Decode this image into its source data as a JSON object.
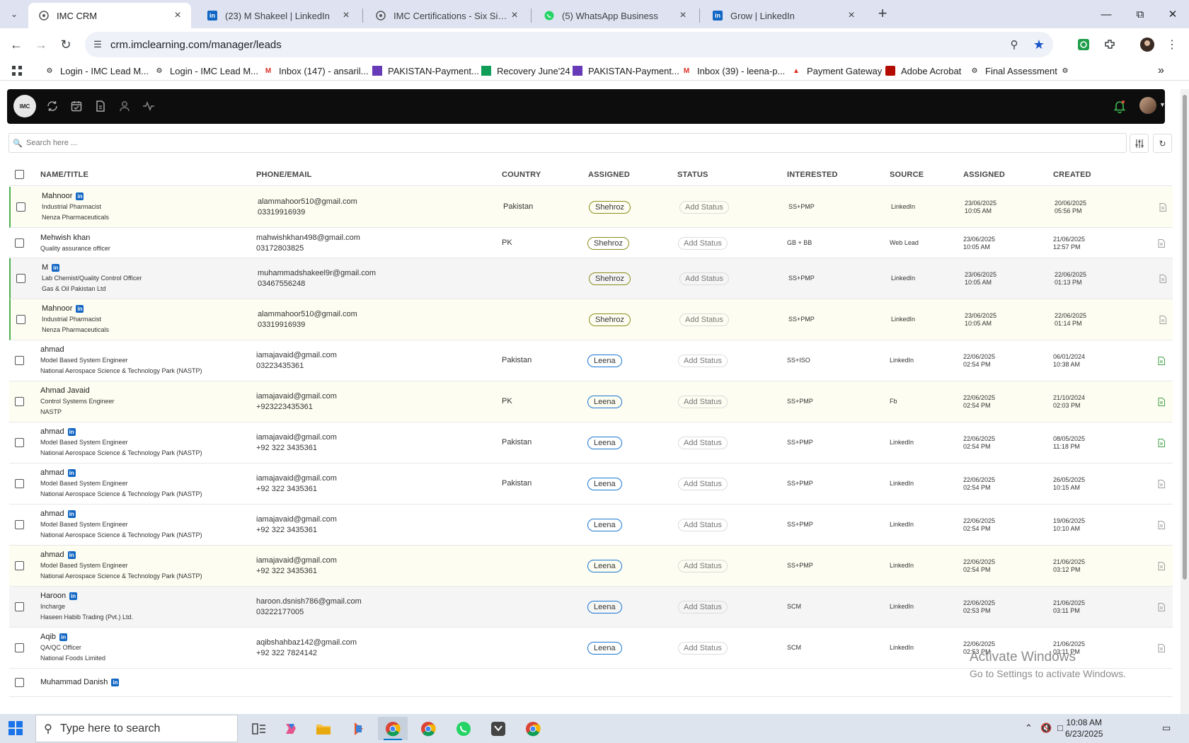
{
  "browser": {
    "tabs": [
      {
        "title": "IMC CRM",
        "active": true,
        "icon": "imc-icon"
      },
      {
        "title": "(23) M Shakeel | LinkedIn",
        "active": false,
        "icon": "linkedin-icon"
      },
      {
        "title": "IMC Certifications - Six Sigma G",
        "active": false,
        "icon": "imc-icon"
      },
      {
        "title": "(5) WhatsApp Business",
        "active": false,
        "icon": "whatsapp-icon"
      },
      {
        "title": "Grow | LinkedIn",
        "active": false,
        "icon": "linkedin-icon"
      }
    ],
    "url": "crm.imclearning.com/manager/leads",
    "bookmarks": [
      "Login - IMC Lead M...",
      "Login - IMC Lead M...",
      "Inbox (147) - ansaril...",
      "PAKISTAN-Payment...",
      "Recovery June'24",
      "PAKISTAN-Payment...",
      "Inbox (39) - leena-p...",
      "Payment Gateway",
      "Adobe Acrobat",
      "Final Assessment"
    ]
  },
  "app": {
    "logo_text": "IMC",
    "search_placeholder": "Search here ...",
    "columns": [
      "NAME/TITLE",
      "PHONE/EMAIL",
      "COUNTRY",
      "ASSIGNED",
      "STATUS",
      "INTERESTED",
      "SOURCE",
      "ASSIGNED",
      "CREATED"
    ],
    "rows": [
      {
        "name": "Mahnoor",
        "linkedin": true,
        "title": "Industrial Pharmacist",
        "company": "Nenza Pharmaceuticals",
        "email": "alammahoor510@gmail.com",
        "phone": "03319916939",
        "country": "Pakistan",
        "assigned": "Shehroz",
        "status": "Add Status",
        "interested": "SS+PMP",
        "source": "LinkedIn",
        "assigned_date": "23/06/2025",
        "assigned_time": "10:05 AM",
        "created_date": "20/06/2025",
        "created_time": "05:56 PM"
      },
      {
        "name": "Mehwish khan",
        "linkedin": false,
        "title": "Quality assurance officer",
        "company": "",
        "email": "mahwishkhan498@gmail.com",
        "phone": "03172803825",
        "country": "PK",
        "assigned": "Shehroz",
        "status": "Add Status",
        "interested": "GB + BB",
        "source": "Web Lead",
        "assigned_date": "23/06/2025",
        "assigned_time": "10:05 AM",
        "created_date": "21/06/2025",
        "created_time": "12:57 PM"
      },
      {
        "name": "M",
        "linkedin": true,
        "title": "Lab Chemist/Quality Control Officer",
        "company": "Gas & Oil Pakistan Ltd",
        "email": "muhammadshakeel9r@gmail.com",
        "phone": "03467556248",
        "country": "",
        "assigned": "Shehroz",
        "status": "Add Status",
        "interested": "SS+PMP",
        "source": "LinkedIn",
        "assigned_date": "23/06/2025",
        "assigned_time": "10:05 AM",
        "created_date": "22/06/2025",
        "created_time": "01:13 PM"
      },
      {
        "name": "Mahnoor",
        "linkedin": true,
        "title": "Industrial Pharmacist",
        "company": "Nenza Pharmaceuticals",
        "email": "alammahoor510@gmail.com",
        "phone": "03319916939",
        "country": "",
        "assigned": "Shehroz",
        "status": "Add Status",
        "interested": "SS+PMP",
        "source": "LinkedIn",
        "assigned_date": "23/06/2025",
        "assigned_time": "10:05 AM",
        "created_date": "22/06/2025",
        "created_time": "01:14 PM"
      },
      {
        "name": "ahmad",
        "linkedin": false,
        "title": "Model Based System Engineer",
        "company": "National Aerospace Science & Technology Park (NASTP)",
        "email": "iamajavaid@gmail.com",
        "phone": "03223435361",
        "country": "Pakistan",
        "assigned": "Leena",
        "status": "Add Status",
        "interested": "SS+ISO",
        "source": "LinkedIn",
        "assigned_date": "22/06/2025",
        "assigned_time": "02:54 PM",
        "created_date": "06/01/2024",
        "created_time": "10:38 AM"
      },
      {
        "name": "Ahmad Javaid",
        "linkedin": false,
        "title": "Control Systems Engineer",
        "company": "NASTP",
        "email": "iamajavaid@gmail.com",
        "phone": "+923223435361",
        "country": "PK",
        "assigned": "Leena",
        "status": "Add Status",
        "interested": "SS+PMP",
        "source": "Fb",
        "assigned_date": "22/06/2025",
        "assigned_time": "02:54 PM",
        "created_date": "21/10/2024",
        "created_time": "02:03 PM"
      },
      {
        "name": "ahmad",
        "linkedin": true,
        "title": "Model Based System Engineer",
        "company": "National Aerospace Science & Technology Park (NASTP)",
        "email": "iamajavaid@gmail.com",
        "phone": "+92 322 3435361",
        "country": "Pakistan",
        "assigned": "Leena",
        "status": "Add Status",
        "interested": "SS+PMP",
        "source": "LinkedIn",
        "assigned_date": "22/06/2025",
        "assigned_time": "02:54 PM",
        "created_date": "08/05/2025",
        "created_time": "11:18 PM"
      },
      {
        "name": "ahmad",
        "linkedin": true,
        "title": "Model Based System Engineer",
        "company": "National Aerospace Science & Technology Park (NASTP)",
        "email": "iamajavaid@gmail.com",
        "phone": "+92 322 3435361",
        "country": "Pakistan",
        "assigned": "Leena",
        "status": "Add Status",
        "interested": "SS+PMP",
        "source": "LinkedIn",
        "assigned_date": "22/06/2025",
        "assigned_time": "02:54 PM",
        "created_date": "26/05/2025",
        "created_time": "10:15 AM"
      },
      {
        "name": "ahmad",
        "linkedin": true,
        "title": "Model Based System Engineer",
        "company": "National Aerospace Science & Technology Park (NASTP)",
        "email": "iamajavaid@gmail.com",
        "phone": "+92 322 3435361",
        "country": "",
        "assigned": "Leena",
        "status": "Add Status",
        "interested": "SS+PMP",
        "source": "LinkedIn",
        "assigned_date": "22/06/2025",
        "assigned_time": "02:54 PM",
        "created_date": "19/06/2025",
        "created_time": "10:10 AM"
      },
      {
        "name": "ahmad",
        "linkedin": true,
        "title": "Model Based System Engineer",
        "company": "National Aerospace Science & Technology Park (NASTP)",
        "email": "iamajavaid@gmail.com",
        "phone": "+92 322 3435361",
        "country": "",
        "assigned": "Leena",
        "status": "Add Status",
        "interested": "SS+PMP",
        "source": "LinkedIn",
        "assigned_date": "22/06/2025",
        "assigned_time": "02:54 PM",
        "created_date": "21/06/2025",
        "created_time": "03:12 PM"
      },
      {
        "name": "Haroon",
        "linkedin": true,
        "title": "Incharge",
        "company": "Haseen Habib Trading (Pvt.) Ltd.",
        "email": "haroon.dsnish786@gmail.com",
        "phone": "03222177005",
        "country": "",
        "assigned": "Leena",
        "status": "Add Status",
        "interested": "SCM",
        "source": "LinkedIn",
        "assigned_date": "22/06/2025",
        "assigned_time": "02:53 PM",
        "created_date": "21/06/2025",
        "created_time": "03:11 PM"
      },
      {
        "name": "Aqib",
        "linkedin": true,
        "title": "QA/QC Officer",
        "company": "National Foods Limited",
        "email": "aqibshahbaz142@gmail.com",
        "phone": "+92 322 7824142",
        "country": "",
        "assigned": "Leena",
        "status": "Add Status",
        "interested": "SCM",
        "source": "LinkedIn",
        "assigned_date": "22/06/2025",
        "assigned_time": "02:53 PM",
        "created_date": "21/06/2025",
        "created_time": "03:11 PM"
      },
      {
        "name": "Muhammad Danish",
        "linkedin": true,
        "title": "",
        "company": "",
        "email": "",
        "phone": "",
        "country": "",
        "assigned": "",
        "status": "",
        "interested": "",
        "source": "",
        "assigned_date": "",
        "assigned_time": "",
        "created_date": "",
        "created_time": ""
      }
    ]
  },
  "watermark": {
    "line1": "Activate Windows",
    "line2": "Go to Settings to activate Windows."
  },
  "taskbar": {
    "search_placeholder": "Type here to search",
    "time": "10:08 AM",
    "date": "6/23/2025"
  },
  "colors": {
    "olive_badge": "#8a8f1b",
    "blue_badge": "#1976d2",
    "linkedin": "#1267c4",
    "appbar": "#0d0d0d",
    "notification_green": "#3fb950"
  }
}
